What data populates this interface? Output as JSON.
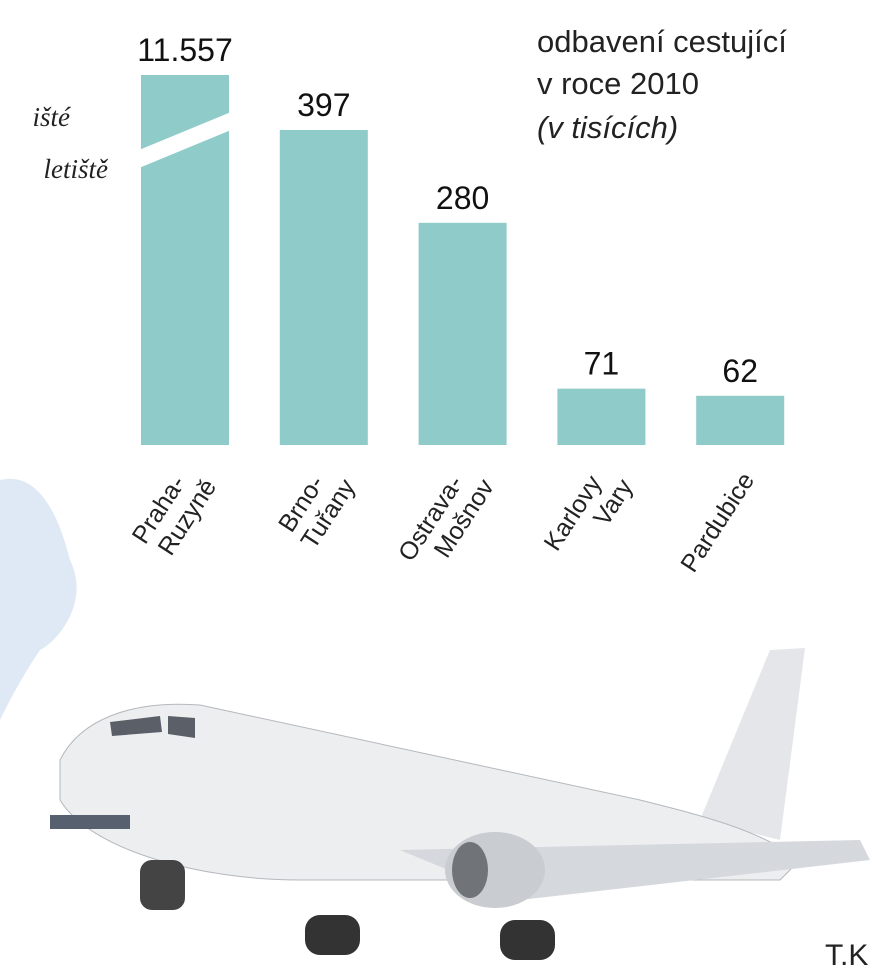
{
  "chart_data": {
    "type": "bar",
    "title_lines": [
      "odbavení cestující",
      "v roce 2010"
    ],
    "subtitle": "(v tisících)",
    "annotations": [
      "išté",
      "letiště"
    ],
    "credit": "T.K",
    "categories": [
      [
        "Praha-",
        "Ruzyně"
      ],
      [
        "Brno-",
        "Tuřany"
      ],
      [
        "Ostrava-",
        "Mošnov"
      ],
      [
        "Karlovy",
        "Vary"
      ],
      [
        "Pardubice"
      ]
    ],
    "values": [
      11557,
      397,
      280,
      71,
      62
    ],
    "value_labels": [
      "11.557",
      "397",
      "280",
      "71",
      "62"
    ],
    "color": "#8ecbc9"
  }
}
